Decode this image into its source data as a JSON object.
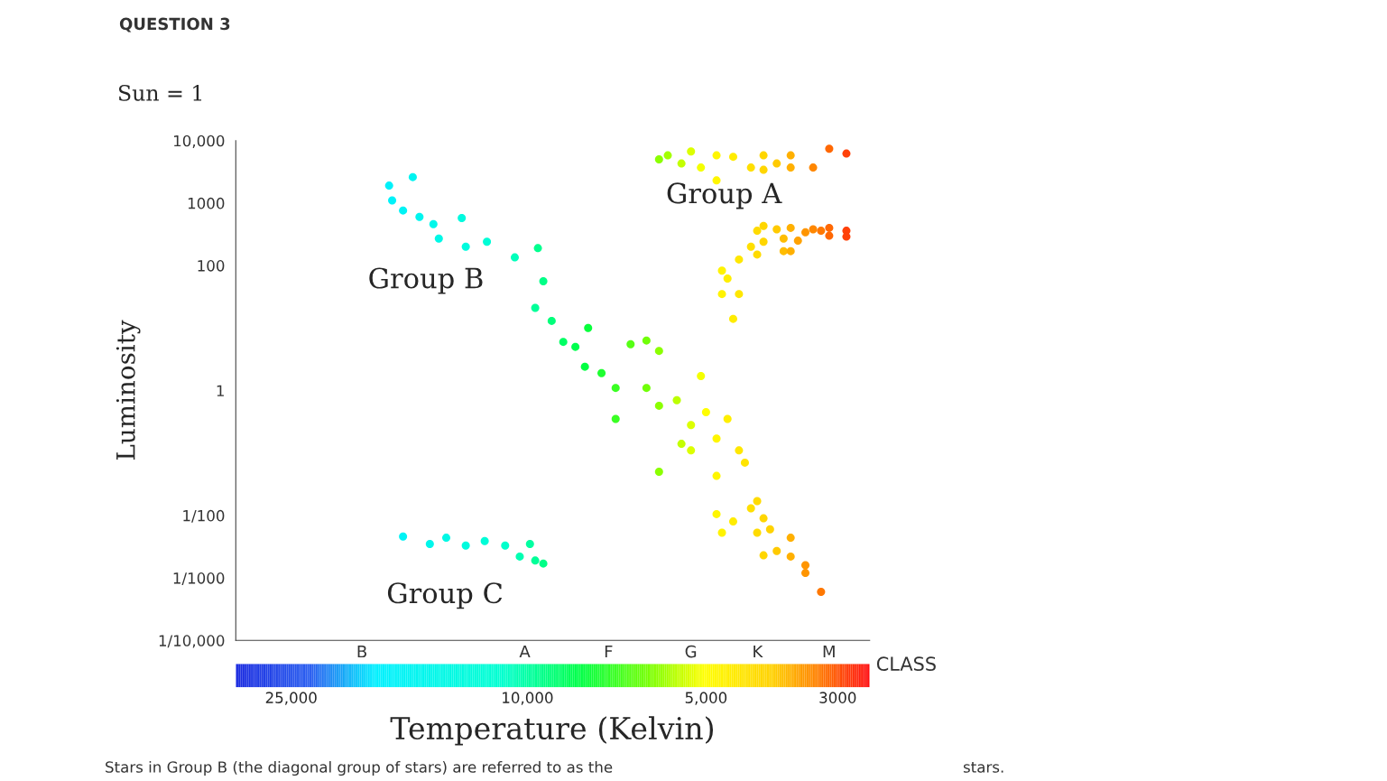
{
  "chart_data": {
    "type": "scatter",
    "title": "QUESTION 3",
    "subtitle": "Sun = 1",
    "ylabel": "Luminosity",
    "xlabel": "Temperature (Kelvin)",
    "log": "xy",
    "grid": false,
    "marker": "circle",
    "xlim": [
      31000,
      2650
    ],
    "xticks": [
      {
        "value": 25000,
        "label": "25,000"
      },
      {
        "value": 10000,
        "label": "10,000"
      },
      {
        "value": 5000,
        "label": "5,000"
      },
      3000
    ],
    "ylim": [
      0.0001,
      10000
    ],
    "yticks": [
      {
        "value": 0.0001,
        "label": "1/10,000"
      },
      {
        "value": 0.001,
        "label": "1/1000"
      },
      {
        "value": 0.01,
        "label": "1/100"
      },
      1,
      100,
      1000,
      {
        "value": 10000,
        "label": "10,000"
      }
    ],
    "annotations": [
      "Group A",
      "Group B",
      "Group C",
      "B",
      "A",
      "F",
      "G",
      "K",
      "M",
      "CLASS",
      "Stars in Group B (the diagonal group of stars) are referred to as the",
      "stars."
    ],
    "series": [
      {
        "x": [
          15600,
          17100,
          16900,
          16200,
          15200,
          14400,
          12900,
          14100,
          12700,
          11700,
          10500,
          9600,
          9400,
          9700,
          9100,
          8700,
          8300,
          7900,
          8000,
          7500,
          7100,
          6700,
          6300,
          6000,
          6300,
          6000,
          7100,
          6000,
          5600,
          5300,
          5100,
          5000,
          4800,
          4600,
          4400,
          4300,
          4800,
          4800,
          4700,
          4500,
          4200,
          4100,
          4000,
          3900,
          4100,
          3600,
          4000,
          3800,
          3600,
          3400,
          3400,
          3200,
          5300,
          5500,
          16200,
          14600,
          13700,
          12700,
          11800,
          10900,
          9900,
          10300,
          9700,
          9400,
          6000,
          5800,
          5500,
          5300,
          5100,
          4800,
          4800,
          4500,
          4200,
          4000,
          4000,
          3800,
          3600,
          3600,
          3300,
          3100,
          2900,
          4100,
          4000,
          3800,
          3600,
          3400,
          3300,
          3200,
          3100,
          2900,
          2900,
          3100,
          3500,
          3700,
          4000,
          4100,
          4200,
          4400,
          4700,
          4600,
          4700,
          4400,
          4500,
          3700,
          3600
        ],
        "values": [
          2600,
          1900,
          1100,
          760,
          600,
          460,
          575,
          270,
          200,
          240,
          135,
          190,
          56,
          21,
          13,
          6,
          5,
          10,
          2.4,
          1.9,
          1.1,
          5.5,
          6.3,
          4.3,
          1.1,
          0.57,
          0.35,
          0.05,
          0.7,
          0.28,
          1.7,
          0.45,
          0.17,
          0.35,
          0.11,
          0.07,
          0.043,
          0.0105,
          0.0053,
          0.008,
          0.013,
          0.017,
          0.009,
          0.006,
          0.0053,
          0.0044,
          0.0023,
          0.0027,
          0.0022,
          0.0016,
          0.0012,
          0.0006,
          0.11,
          0.14,
          0.0046,
          0.0035,
          0.0044,
          0.0033,
          0.0039,
          0.0033,
          0.0035,
          0.0022,
          0.0019,
          0.0017,
          5000,
          5800,
          4300,
          6700,
          3700,
          5800,
          2300,
          5500,
          3700,
          5800,
          3400,
          4300,
          5800,
          3700,
          3700,
          7400,
          6200,
          360,
          430,
          380,
          400,
          340,
          380,
          360,
          400,
          360,
          290,
          300,
          250,
          270,
          240,
          150,
          200,
          125,
          83,
          62,
          35,
          35,
          14,
          170,
          170
        ]
      }
    ]
  }
}
